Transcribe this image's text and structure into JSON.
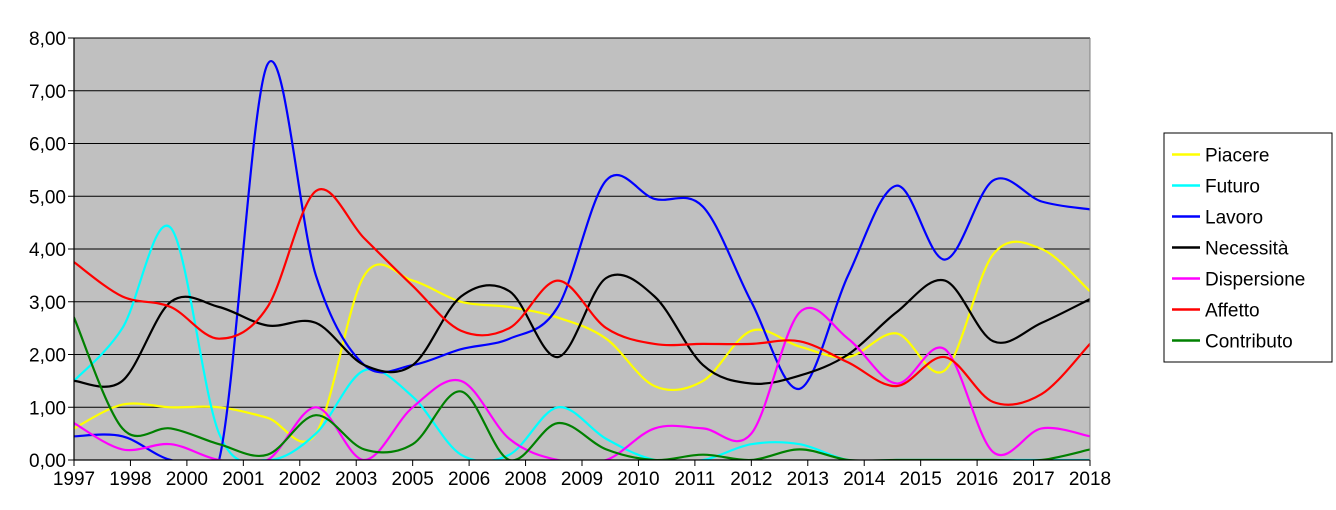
{
  "chart_data": {
    "type": "line",
    "x": [
      1997,
      1998,
      1999,
      2000,
      2001,
      2002,
      2003,
      2004,
      2005,
      2006,
      2007,
      2008,
      2009,
      2010,
      2011,
      2012,
      2013,
      2014,
      2015,
      2016,
      2017,
      2018
    ],
    "x_tick_labels": [
      "1997",
      "1998",
      "2000",
      "2001",
      "2002",
      "2003",
      "2005",
      "2006",
      "2008",
      "2009",
      "2010",
      "2011",
      "2012",
      "2013",
      "2014",
      "2015",
      "2016",
      "2017",
      "2018"
    ],
    "ylim": [
      0,
      8
    ],
    "y_tick_labels": [
      "0,00",
      "1,00",
      "2,00",
      "3,00",
      "4,00",
      "5,00",
      "6,00",
      "7,00",
      "8,00"
    ],
    "grid": true,
    "plot_background": "#C0C0C0",
    "legend_position": "right",
    "series": [
      {
        "name": "Piacere",
        "color": "#FFFF00",
        "values": [
          0.6,
          1.05,
          1.0,
          1.0,
          0.8,
          0.5,
          3.5,
          3.4,
          3.0,
          2.9,
          2.7,
          2.3,
          1.4,
          1.5,
          2.45,
          2.15,
          1.95,
          2.4,
          1.7,
          3.9,
          4.0,
          3.2
        ]
      },
      {
        "name": "Futuro",
        "color": "#00FFFF",
        "values": [
          1.5,
          2.5,
          4.4,
          0.5,
          0.0,
          0.5,
          1.7,
          1.2,
          0.1,
          0.1,
          1.0,
          0.4,
          0.0,
          0.0,
          0.3,
          0.3,
          0.0,
          0.0,
          0.0,
          0.0,
          0.0,
          0.0
        ]
      },
      {
        "name": "Lavoro",
        "color": "#0000FF",
        "values": [
          0.45,
          0.45,
          0.0,
          0.0,
          7.5,
          3.5,
          1.8,
          1.8,
          2.1,
          2.3,
          2.9,
          5.3,
          4.95,
          4.8,
          3.0,
          1.35,
          3.5,
          5.2,
          3.8,
          5.3,
          4.9,
          4.75
        ]
      },
      {
        "name": "Necessità",
        "color": "#000000",
        "values": [
          1.5,
          1.5,
          3.0,
          2.9,
          2.55,
          2.6,
          1.8,
          1.8,
          3.1,
          3.2,
          1.95,
          3.45,
          3.1,
          1.8,
          1.45,
          1.6,
          2.0,
          2.8,
          3.4,
          2.25,
          2.6,
          3.05
        ]
      },
      {
        "name": "Dispersione",
        "color": "#FF00FF",
        "values": [
          0.7,
          0.2,
          0.3,
          0.0,
          0.0,
          1.0,
          0.0,
          1.0,
          1.5,
          0.4,
          0.0,
          0.0,
          0.6,
          0.6,
          0.5,
          2.8,
          2.3,
          1.45,
          2.1,
          0.15,
          0.6,
          0.45
        ]
      },
      {
        "name": "Affetto",
        "color": "#FF0000",
        "values": [
          3.75,
          3.1,
          2.9,
          2.3,
          2.9,
          5.1,
          4.2,
          3.3,
          2.45,
          2.5,
          3.4,
          2.5,
          2.2,
          2.2,
          2.2,
          2.25,
          1.85,
          1.4,
          1.95,
          1.1,
          1.25,
          2.2
        ]
      },
      {
        "name": "Contributo",
        "color": "#008000",
        "values": [
          2.7,
          0.6,
          0.6,
          0.3,
          0.1,
          0.85,
          0.2,
          0.3,
          1.3,
          0.0,
          0.7,
          0.2,
          0.0,
          0.1,
          0.0,
          0.2,
          0.0,
          0.0,
          0.0,
          0.0,
          0.0,
          0.2
        ]
      }
    ]
  }
}
